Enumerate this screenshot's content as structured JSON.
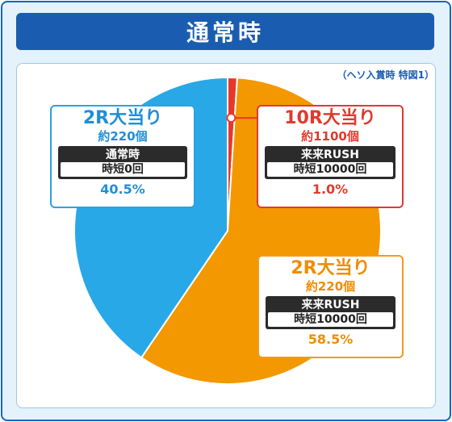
{
  "title": "通常時",
  "note": "（ヘソ入賞時 特図1）",
  "colors": {
    "blue": "#29a8e8",
    "orange": "#f39800",
    "red": "#e8382c",
    "frame": "#1565c0"
  },
  "chart_data": {
    "type": "pie",
    "title": "通常時",
    "slices": [
      {
        "name": "10R大当り",
        "prize": "約1100個",
        "mode": "来来RUSH",
        "sub": "時短10000回",
        "label": "1.0%",
        "value": 1.0,
        "color": "#e8382c"
      },
      {
        "name": "2R大当り",
        "prize": "約220個",
        "mode": "来来RUSH",
        "sub": "時短10000回",
        "label": "58.5%",
        "value": 58.5,
        "color": "#f39800"
      },
      {
        "name": "2R大当り",
        "prize": "約220個",
        "mode": "通常時",
        "sub": "時短0回",
        "label": "40.5%",
        "value": 40.5,
        "color": "#29a8e8"
      }
    ]
  }
}
